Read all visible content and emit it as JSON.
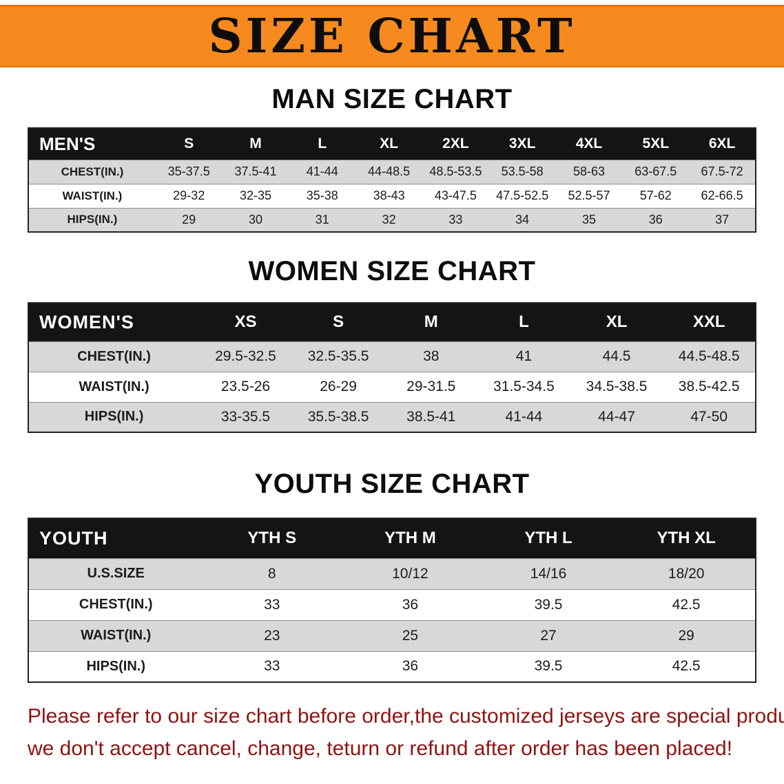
{
  "banner": {
    "title": "SIZE CHART"
  },
  "sections": [
    {
      "title": "MAN SIZE CHART",
      "table": {
        "name": "mens-size",
        "header_label": "MEN'S",
        "columns": [
          "S",
          "M",
          "L",
          "XL",
          "2XL",
          "3XL",
          "4XL",
          "5XL",
          "6XL"
        ],
        "rows": [
          {
            "label": "CHEST(IN.)",
            "values": [
              "35-37.5",
              "37.5-41",
              "41-44",
              "44-48.5",
              "48.5-53.5",
              "53.5-58",
              "58-63",
              "63-67.5",
              "67.5-72"
            ]
          },
          {
            "label": "WAIST(IN.)",
            "values": [
              "29-32",
              "32-35",
              "35-38",
              "38-43",
              "43-47.5",
              "47.5-52.5",
              "52.5-57",
              "57-62",
              "62-66.5"
            ]
          },
          {
            "label": "HIPS(IN.)",
            "values": [
              "29",
              "30",
              "31",
              "32",
              "33",
              "34",
              "35",
              "36",
              "37"
            ]
          }
        ]
      }
    },
    {
      "title": "WOMEN SIZE CHART",
      "table": {
        "name": "womens-size",
        "header_label": "WOMEN'S",
        "columns": [
          "XS",
          "S",
          "M",
          "L",
          "XL",
          "XXL"
        ],
        "rows": [
          {
            "label": "CHEST(IN.)",
            "values": [
              "29.5-32.5",
              "32.5-35.5",
              "38",
              "41",
              "44.5",
              "44.5-48.5"
            ]
          },
          {
            "label": "WAIST(IN.)",
            "values": [
              "23.5-26",
              "26-29",
              "29-31.5",
              "31.5-34.5",
              "34.5-38.5",
              "38.5-42.5"
            ]
          },
          {
            "label": "HIPS(IN.)",
            "values": [
              "33-35.5",
              "35.5-38.5",
              "38.5-41",
              "41-44",
              "44-47",
              "47-50"
            ]
          }
        ]
      }
    },
    {
      "title": "YOUTH SIZE CHART",
      "table": {
        "name": "youth-size",
        "header_label": "YOUTH",
        "columns": [
          "YTH S",
          "YTH M",
          "YTH L",
          "YTH XL"
        ],
        "rows": [
          {
            "label": "U.S.SIZE",
            "values": [
              "8",
              "10/12",
              "14/16",
              "18/20"
            ]
          },
          {
            "label": "CHEST(IN.)",
            "values": [
              "33",
              "36",
              "39.5",
              "42.5"
            ]
          },
          {
            "label": "WAIST(IN.)",
            "values": [
              "23",
              "25",
              "27",
              "29"
            ]
          },
          {
            "label": "HIPS(IN.)",
            "values": [
              "33",
              "36",
              "39.5",
              "42.5"
            ]
          }
        ]
      }
    }
  ],
  "footer": {
    "line1": "Please refer to our size chart before order,the customized jerseys are special products,",
    "line2": "we don't accept cancel, change, teturn or refund after order has been placed!"
  },
  "colors": {
    "banner_orange": "#f68a1e",
    "banner_edge": "#e0750d",
    "header_black": "#141414",
    "row_gray": "#d8d8d8",
    "notice_red": "#8e1410"
  }
}
